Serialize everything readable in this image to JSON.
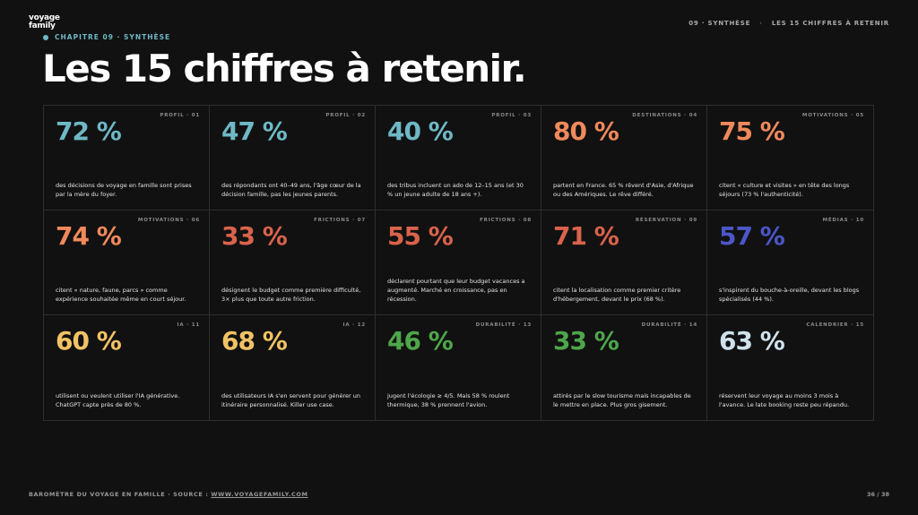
{
  "header": {
    "logo": [
      "voyage",
      "family"
    ],
    "chapter": "CHAPITRE 09 · SYNTHÈSE",
    "title": "Les 15 chiffres à retenir.",
    "breadcrumb": [
      "09 · SYNTHÈSE",
      "LES 15 CHIFFRES À RETENIR"
    ]
  },
  "cards": [
    {
      "tag": "PROFIL · 01",
      "figure": "72 %",
      "color": "#6fb8c6",
      "text": "des décisions de voyage en famille sont prises par la mère du foyer."
    },
    {
      "tag": "PROFIL · 02",
      "figure": "47 %",
      "color": "#6fb8c6",
      "text": "des répondants ont 40–49 ans, l'âge cœur de la décision famille, pas les jeunes parents."
    },
    {
      "tag": "PROFIL · 03",
      "figure": "40 %",
      "color": "#6fb8c6",
      "text": "des tribus incluent un ado de 12–15 ans (et 30 % un jeune adulte de 18 ans +)."
    },
    {
      "tag": "DESTINATIONS · 04",
      "figure": "80 %",
      "color": "#f0895c",
      "text": "partent en France. 65 % rêvent d'Asie, d'Afrique ou des Amériques. Le rêve différé."
    },
    {
      "tag": "MOTIVATIONS · 05",
      "figure": "75 %",
      "color": "#f0895c",
      "text": "citent « culture et visites » en tête des longs séjours (73 % l'authenticité)."
    },
    {
      "tag": "MOTIVATIONS · 06",
      "figure": "74 %",
      "color": "#f0895c",
      "text": "citent « nature, faune, parcs » comme expérience souhaitée même en court séjour."
    },
    {
      "tag": "FRICTIONS · 07",
      "figure": "33 %",
      "color": "#d9634c",
      "text": "désignent le budget comme première difficulté, 3× plus que toute autre friction."
    },
    {
      "tag": "FRICTIONS · 08",
      "figure": "55 %",
      "color": "#d9634c",
      "text": "déclarent pourtant que leur budget vacances a augmenté. Marché en croissance, pas en récession."
    },
    {
      "tag": "RÉSERVATION · 09",
      "figure": "71 %",
      "color": "#d9634c",
      "text": "citent la localisation comme premier critère d'hébergement, devant le prix (68 %)."
    },
    {
      "tag": "MÉDIAS · 10",
      "figure": "57 %",
      "color": "#4b56c8",
      "text": "s'inspirent du bouche-à-oreille, devant les blogs spécialisés (44 %)."
    },
    {
      "tag": "IA · 11",
      "figure": "60 %",
      "color": "#f2c265",
      "text": "utilisent ou veulent utiliser l'IA générative. ChatGPT capte près de 80 %."
    },
    {
      "tag": "IA · 12",
      "figure": "68 %",
      "color": "#f2c265",
      "text": "des utilisateurs IA s'en servent pour générer un itinéraire personnalisé. Killer use case."
    },
    {
      "tag": "DURABILITÉ · 13",
      "figure": "46 %",
      "color": "#4ea64a",
      "text": "jugent l'écologie ≥ 4/5. Mais 58 % roulent thermique, 38 % prennent l'avion."
    },
    {
      "tag": "DURABILITÉ · 14",
      "figure": "33 %",
      "color": "#4ea64a",
      "text": "attirés par le slow tourisme mais incapables de le mettre en place. Plus gros gisement."
    },
    {
      "tag": "CALENDRIER · 15",
      "figure": "63 %",
      "color": "#cfe2ec",
      "text": "réservent leur voyage au moins 3 mois à l'avance. Le late booking reste peu répandu."
    }
  ],
  "footer": {
    "source": "BAROMÈTRE DU VOYAGE EN FAMILLE · SOURCE :",
    "link": "WWW.VOYAGEFAMILY.COM",
    "page": "36 / 38"
  }
}
